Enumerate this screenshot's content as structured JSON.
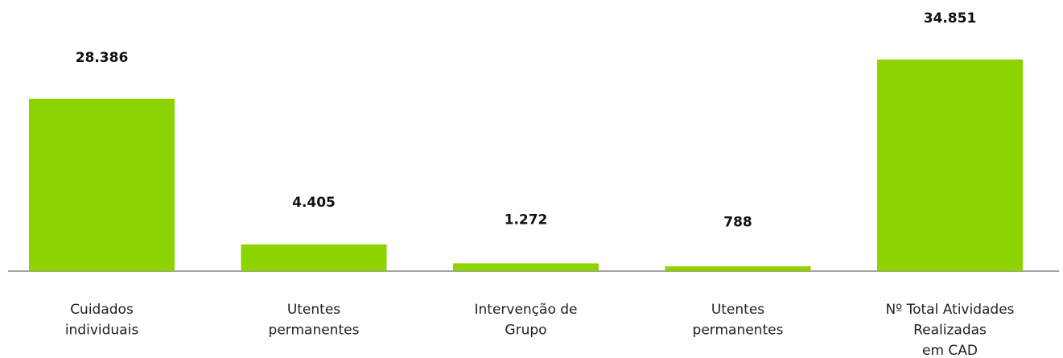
{
  "chart_data": {
    "type": "bar",
    "categories": [
      [
        "Cuidados",
        "individuais"
      ],
      [
        "Utentes",
        "permanentes"
      ],
      [
        "Intervenção de",
        "Grupo"
      ],
      [
        "Utentes",
        "permanentes"
      ],
      [
        "Nº Total Atividades",
        "Realizadas",
        "em CAD"
      ]
    ],
    "values": [
      28386,
      4405,
      1272,
      788,
      34851
    ],
    "value_labels": [
      "28.386",
      "4.405",
      "1.272",
      "788",
      "34.851"
    ],
    "color": "#8dd300"
  }
}
